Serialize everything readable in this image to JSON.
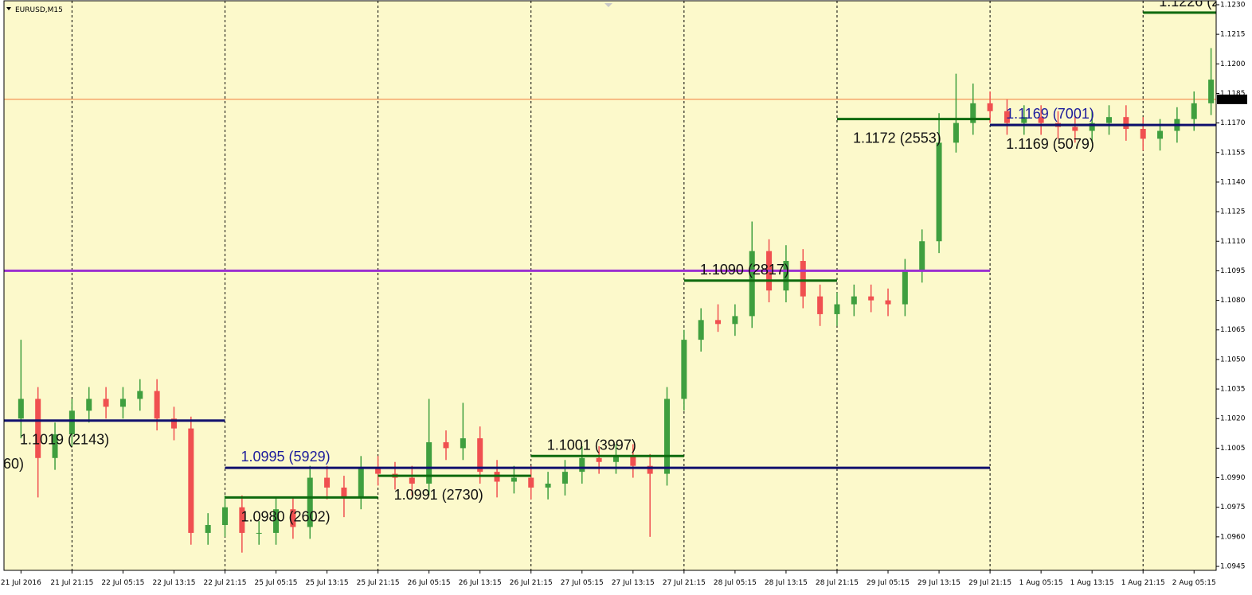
{
  "chart_data": {
    "type": "candlestick",
    "title": "EURUSD,M15",
    "background": "#fcf9cb",
    "up_color": "#3f9f3f",
    "down_color": "#f05050",
    "period_separators": true,
    "xlim": [
      -1,
      70.3
    ],
    "ylim": [
      1.0943,
      1.1232
    ],
    "xticks": [
      {
        "value": 0,
        "label": "21 Jul 2016"
      },
      {
        "value": 3,
        "label": "21 Jul 21:15"
      },
      {
        "value": 6,
        "label": "22 Jul 05:15"
      },
      {
        "value": 9,
        "label": "22 Jul 13:15"
      },
      {
        "value": 12,
        "label": "22 Jul 21:15"
      },
      {
        "value": 15,
        "label": "25 Jul 05:15"
      },
      {
        "value": 18,
        "label": "25 Jul 13:15"
      },
      {
        "value": 21,
        "label": "25 Jul 21:15"
      },
      {
        "value": 24,
        "label": "26 Jul 05:15"
      },
      {
        "value": 27,
        "label": "26 Jul 13:15"
      },
      {
        "value": 30,
        "label": "26 Jul 21:15"
      },
      {
        "value": 33,
        "label": "27 Jul 05:15"
      },
      {
        "value": 36,
        "label": "27 Jul 13:15"
      },
      {
        "value": 39,
        "label": "27 Jul 21:15"
      },
      {
        "value": 42,
        "label": "28 Jul 05:15"
      },
      {
        "value": 45,
        "label": "28 Jul 13:15"
      },
      {
        "value": 48,
        "label": "28 Jul 21:15"
      },
      {
        "value": 51,
        "label": "29 Jul 05:15"
      },
      {
        "value": 54,
        "label": "29 Jul 13:15"
      },
      {
        "value": 57,
        "label": "29 Jul 21:15"
      },
      {
        "value": 60,
        "label": "1 Aug 05:15"
      },
      {
        "value": 63,
        "label": "1 Aug 13:15"
      },
      {
        "value": 66,
        "label": "1 Aug 21:15"
      },
      {
        "value": 69,
        "label": "2 Aug 05:15"
      }
    ],
    "yticks": [
      1.0945,
      {
        "value": 1.096,
        "label": "1.0960"
      },
      1.0975,
      {
        "value": 1.099,
        "label": "1.0990"
      },
      1.1005,
      {
        "value": 1.102,
        "label": "1.1020"
      },
      1.1035,
      {
        "value": 1.105,
        "label": "1.1050"
      },
      1.1065,
      {
        "value": 1.108,
        "label": "1.1080"
      },
      1.1095,
      {
        "value": 1.111,
        "label": "1.1110"
      },
      1.1125,
      {
        "value": 1.114,
        "label": "1.1140"
      },
      1.1155,
      {
        "value": 1.117,
        "label": "1.1170"
      },
      1.1185,
      {
        "value": 1.12,
        "label": "1.1200"
      },
      1.1215,
      {
        "value": 1.123,
        "label": "1.1230"
      }
    ],
    "open": [
      1.102,
      1.103,
      1.1,
      1.1012,
      1.1024,
      1.103,
      1.1026,
      1.103,
      1.1034,
      1.102,
      1.1015,
      1.0962,
      1.0966,
      1.0975,
      1.0962,
      1.0962,
      1.0974,
      1.0965,
      1.099,
      1.0985,
      1.098,
      1.0995,
      1.0992,
      1.099,
      1.0987,
      1.1008,
      1.1005,
      1.101,
      1.0993,
      1.0988,
      1.099,
      1.0985,
      1.0987,
      1.0993,
      1.1,
      1.0998,
      1.1001,
      1.0996,
      1.0992,
      1.103,
      1.106,
      1.107,
      1.1068,
      1.1072,
      1.1105,
      1.1085,
      1.11,
      1.1082,
      1.1073,
      1.1078,
      1.1082,
      1.108,
      1.1078,
      1.1095,
      1.111,
      1.116,
      1.117,
      1.118,
      1.1176,
      1.117,
      1.1173,
      1.117,
      1.1168,
      1.1166,
      1.117,
      1.1173,
      1.1167,
      1.1162,
      1.1166,
      1.1172,
      1.118
    ],
    "high": [
      1.106,
      1.1036,
      1.1018,
      1.103,
      1.1036,
      1.1036,
      1.1036,
      1.104,
      1.104,
      1.1026,
      1.1021,
      1.0972,
      1.0981,
      1.0981,
      1.0968,
      1.098,
      1.098,
      1.0996,
      1.0996,
      1.0991,
      1.1001,
      1.1001,
      1.0998,
      1.0996,
      1.103,
      1.1014,
      1.1028,
      1.1016,
      1.0999,
      1.0996,
      1.0996,
      1.0993,
      1.0999,
      1.1006,
      1.1006,
      1.1007,
      1.1007,
      1.1002,
      1.1036,
      1.1065,
      1.1076,
      1.1078,
      1.1078,
      1.112,
      1.1111,
      1.1108,
      1.1106,
      1.1088,
      1.1084,
      1.1088,
      1.1088,
      1.1086,
      1.1101,
      1.1116,
      1.1175,
      1.1195,
      1.119,
      1.1186,
      1.1182,
      1.1179,
      1.1179,
      1.1176,
      1.1174,
      1.1176,
      1.1179,
      1.1179,
      1.1173,
      1.1172,
      1.1178,
      1.1186,
      1.1208
    ],
    "low": [
      1.101,
      1.098,
      1.0994,
      1.1006,
      1.1018,
      1.102,
      1.102,
      1.1024,
      1.1014,
      1.1009,
      1.0956,
      1.0956,
      1.096,
      1.0952,
      1.0956,
      1.0956,
      1.0959,
      1.0959,
      1.0979,
      1.097,
      1.0974,
      1.0986,
      1.0984,
      1.0981,
      1.0981,
      1.0999,
      1.0999,
      1.0987,
      1.098,
      1.0982,
      1.0979,
      1.0979,
      1.0981,
      1.0987,
      1.0992,
      1.0992,
      1.099,
      1.096,
      1.0986,
      1.1024,
      1.1054,
      1.1064,
      1.1062,
      1.1066,
      1.1079,
      1.1079,
      1.1076,
      1.1067,
      1.1067,
      1.1072,
      1.1074,
      1.1072,
      1.1072,
      1.1089,
      1.1104,
      1.1155,
      1.1164,
      1.117,
      1.1164,
      1.1164,
      1.1164,
      1.1162,
      1.116,
      1.116,
      1.1164,
      1.1161,
      1.1156,
      1.1156,
      1.116,
      1.1166,
      1.1174
    ],
    "close": [
      1.103,
      1.1,
      1.1012,
      1.1024,
      1.103,
      1.1026,
      1.103,
      1.1034,
      1.102,
      1.1015,
      1.0962,
      1.0966,
      1.0975,
      1.0962,
      1.0962,
      1.0974,
      1.0965,
      1.099,
      1.0985,
      1.098,
      1.0995,
      1.0992,
      1.099,
      1.0987,
      1.1008,
      1.1005,
      1.101,
      1.0993,
      1.0988,
      1.099,
      1.0985,
      1.0987,
      1.0993,
      1.1,
      1.0998,
      1.1001,
      1.0996,
      1.0992,
      1.103,
      1.106,
      1.107,
      1.1068,
      1.1072,
      1.1105,
      1.1085,
      1.11,
      1.1082,
      1.1073,
      1.1078,
      1.1082,
      1.108,
      1.1078,
      1.1095,
      1.111,
      1.116,
      1.117,
      1.118,
      1.1176,
      1.117,
      1.1173,
      1.117,
      1.1168,
      1.1166,
      1.117,
      1.1173,
      1.1167,
      1.1162,
      1.1166,
      1.1172,
      1.118,
      1.1192
    ],
    "last_price": 1.1182,
    "last_price_color": "#f07a3a",
    "levels": [
      {
        "price": 1.1095,
        "from": -1,
        "to": 57,
        "color": "#9b30d0"
      },
      {
        "price": 1.1019,
        "from": -1,
        "to": 12,
        "color": "#10106e",
        "label": "1.1019 (2143)",
        "label_color": "#111111",
        "label_side": "below"
      },
      {
        "price": 1.098,
        "from": 12,
        "to": 21,
        "color": "#0e6a0e",
        "label": "1.0980 (2602)",
        "label_color": "#111111",
        "label_side": "below"
      },
      {
        "price": 1.0995,
        "from": 12,
        "to": 57,
        "color": "#10106e",
        "label": "1.0995 (5929)",
        "label_color": "#1c1c9c",
        "label_side": "above"
      },
      {
        "price": 1.0991,
        "from": 21,
        "to": 30,
        "color": "#0e6a0e",
        "label": "1.0991 (2730)",
        "label_color": "#111111",
        "label_side": "below"
      },
      {
        "price": 1.1001,
        "from": 30,
        "to": 39,
        "color": "#0e6a0e",
        "label": "1.1001 (3997)",
        "label_color": "#111111",
        "label_side": "above"
      },
      {
        "price": 1.109,
        "from": 39,
        "to": 48,
        "color": "#0e6a0e",
        "label": "1.1090 (2817)",
        "label_color": "#111111",
        "label_side": "above"
      },
      {
        "price": 1.1172,
        "from": 48,
        "to": 57,
        "color": "#0e6a0e",
        "label": "1.1172 (2553)",
        "label_color": "#111111",
        "label_side": "below"
      },
      {
        "price": 1.1169,
        "from": 57,
        "to": 66,
        "color": "#0e6a0e",
        "label": "1.1169 (5079)",
        "label_color": "#111111",
        "label_side": "below"
      },
      {
        "price": 1.1169,
        "from": 57,
        "to": 70.3,
        "color": "#10106e",
        "label": "1.1169 (7001)",
        "label_color": "#1c1c9c",
        "label_side": "above"
      },
      {
        "price": 1.1226,
        "from": 66,
        "to": 70.3,
        "color": "#0e6a0e",
        "label": "1.1226 (2",
        "label_color": "#111111",
        "label_side": "above"
      }
    ],
    "annotations": [
      "60)"
    ]
  }
}
